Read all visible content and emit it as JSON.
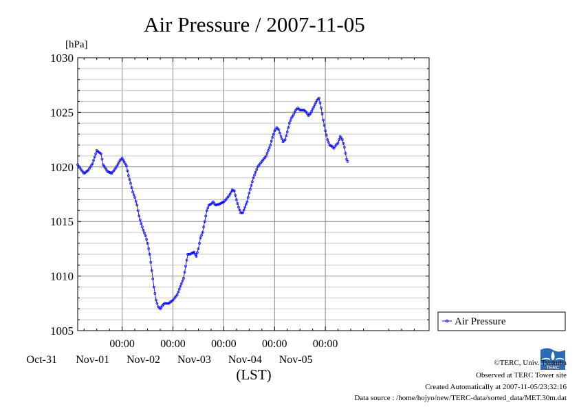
{
  "chart_data": {
    "type": "line",
    "title": "Air Pressure / 2007-11-05",
    "ylabel": "[hPa]",
    "xlabel": "(LST)",
    "ylim": [
      1005,
      1030
    ],
    "yticks": [
      "1030",
      "1025",
      "1020",
      "1015",
      "1010",
      "1005"
    ],
    "xlim_hours": [
      -21,
      145
    ],
    "xticks": [
      {
        "time": "00:00",
        "date": "Nov-01",
        "hour": 0
      },
      {
        "time": "00:00",
        "date": "Nov-02",
        "hour": 24
      },
      {
        "time": "00:00",
        "date": "Nov-03",
        "hour": 48
      },
      {
        "time": "00:00",
        "date": "Nov-04",
        "hour": 72
      },
      {
        "time": "00:00",
        "date": "Nov-05",
        "hour": 96
      }
    ],
    "grid": true,
    "legend_position": "right",
    "series": [
      {
        "name": "Air Pressure",
        "color": "#0000ff",
        "points": [
          [
            -21,
            1020.2
          ],
          [
            -20,
            1019.9
          ],
          [
            -18,
            1019.4
          ],
          [
            -16,
            1019.7
          ],
          [
            -14,
            1020.3
          ],
          [
            -12,
            1021.5
          ],
          [
            -10,
            1021.2
          ],
          [
            -9,
            1020.2
          ],
          [
            -7,
            1019.6
          ],
          [
            -5,
            1019.4
          ],
          [
            -3,
            1019.9
          ],
          [
            -1,
            1020.6
          ],
          [
            0,
            1020.8
          ],
          [
            2,
            1020.1
          ],
          [
            3,
            1019.2
          ],
          [
            4,
            1018.5
          ],
          [
            5,
            1017.7
          ],
          [
            6,
            1017.2
          ],
          [
            7,
            1016.5
          ],
          [
            8,
            1015.5
          ],
          [
            9,
            1014.8
          ],
          [
            10,
            1014.2
          ],
          [
            11,
            1013.7
          ],
          [
            12,
            1013.0
          ],
          [
            13,
            1012.0
          ],
          [
            14,
            1010.5
          ],
          [
            15,
            1009.0
          ],
          [
            16,
            1007.8
          ],
          [
            17,
            1007.2
          ],
          [
            18,
            1007.0
          ],
          [
            19,
            1007.3
          ],
          [
            20,
            1007.5
          ],
          [
            22,
            1007.5
          ],
          [
            24,
            1007.8
          ],
          [
            26,
            1008.3
          ],
          [
            27,
            1008.8
          ],
          [
            28,
            1009.3
          ],
          [
            29,
            1009.8
          ],
          [
            30,
            1010.9
          ],
          [
            31,
            1012.0
          ],
          [
            32,
            1012.0
          ],
          [
            34,
            1012.2
          ],
          [
            35,
            1011.8
          ],
          [
            36,
            1012.5
          ],
          [
            37,
            1013.5
          ],
          [
            38,
            1014.0
          ],
          [
            39,
            1015.0
          ],
          [
            40,
            1016.0
          ],
          [
            41,
            1016.5
          ],
          [
            42,
            1016.6
          ],
          [
            43,
            1016.8
          ],
          [
            44,
            1016.5
          ],
          [
            46,
            1016.6
          ],
          [
            48,
            1016.8
          ],
          [
            49,
            1017.0
          ],
          [
            51,
            1017.5
          ],
          [
            52,
            1017.9
          ],
          [
            53,
            1017.8
          ],
          [
            54,
            1017.0
          ],
          [
            55,
            1016.3
          ],
          [
            56,
            1015.8
          ],
          [
            57,
            1015.8
          ],
          [
            58,
            1016.3
          ],
          [
            59,
            1016.8
          ],
          [
            60,
            1017.6
          ],
          [
            61,
            1018.3
          ],
          [
            62,
            1019.0
          ],
          [
            63,
            1019.5
          ],
          [
            64,
            1020.0
          ],
          [
            66,
            1020.5
          ],
          [
            68,
            1021.0
          ],
          [
            69,
            1021.5
          ],
          [
            70,
            1022.0
          ],
          [
            71,
            1022.7
          ],
          [
            72,
            1023.3
          ],
          [
            73,
            1023.6
          ],
          [
            74,
            1023.4
          ],
          [
            75,
            1022.8
          ],
          [
            76,
            1022.3
          ],
          [
            77,
            1022.5
          ],
          [
            78,
            1023.2
          ],
          [
            79,
            1024.0
          ],
          [
            80,
            1024.5
          ],
          [
            81,
            1024.8
          ],
          [
            82,
            1025.2
          ],
          [
            83,
            1025.4
          ],
          [
            84,
            1025.2
          ],
          [
            86,
            1025.2
          ],
          [
            87,
            1025.0
          ],
          [
            88,
            1024.7
          ],
          [
            89,
            1024.9
          ],
          [
            90,
            1025.3
          ],
          [
            91,
            1025.7
          ],
          [
            92,
            1026.1
          ],
          [
            93,
            1026.3
          ],
          [
            94,
            1025.4
          ],
          [
            95,
            1024.3
          ],
          [
            96,
            1023.3
          ],
          [
            97,
            1022.5
          ],
          [
            98,
            1022.0
          ],
          [
            99,
            1021.9
          ],
          [
            100,
            1021.7
          ],
          [
            101,
            1022.0
          ],
          [
            102,
            1022.2
          ],
          [
            103,
            1022.8
          ],
          [
            104,
            1022.5
          ],
          [
            105,
            1021.8
          ],
          [
            106,
            1020.7
          ],
          [
            106.5,
            1020.5
          ]
        ]
      }
    ]
  },
  "credits": {
    "copyright": "©TERC, Univ. Tsukuba",
    "observed": "Observed at TERC Tower site",
    "created": "Created Automatically at 2007-11-05/23:32:16",
    "source": "Data source : /home/hojyo/new/TERC-data/sorted_data/MET.30m.dat",
    "logo_text": "TERC"
  }
}
